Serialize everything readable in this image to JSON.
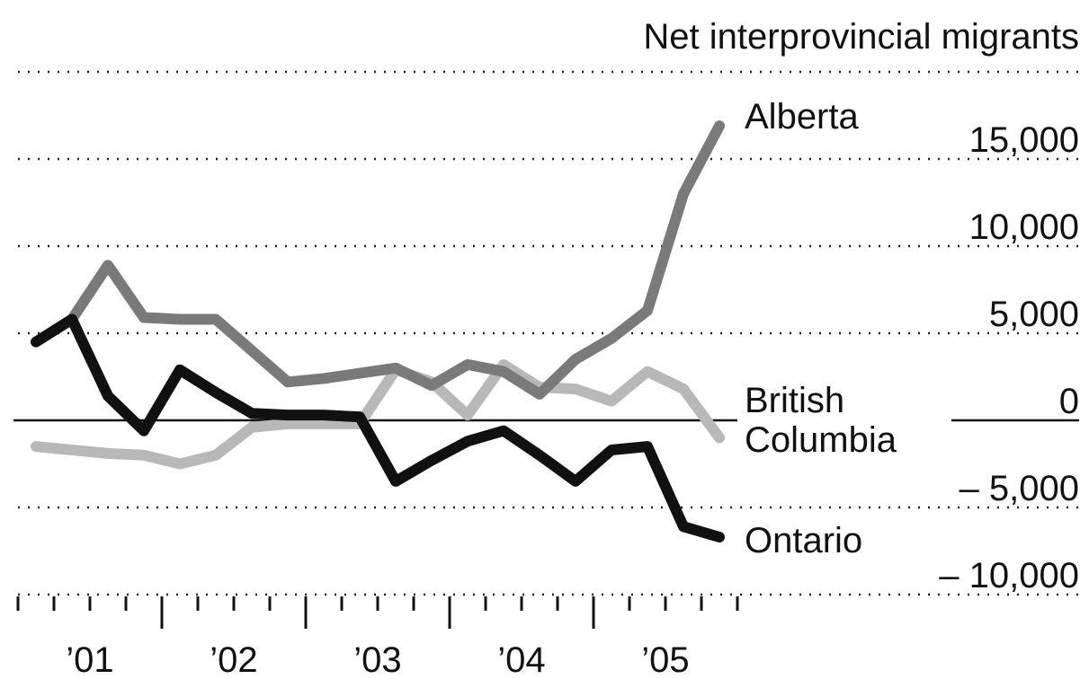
{
  "chart_data": {
    "type": "line",
    "title": "Net interprovincial migrants",
    "x": [
      2001.125,
      2001.375,
      2001.625,
      2001.875,
      2002.125,
      2002.375,
      2002.625,
      2002.875,
      2003.125,
      2003.375,
      2003.625,
      2003.875,
      2004.125,
      2004.375,
      2004.625,
      2004.875,
      2005.125,
      2005.375,
      2005.625,
      2005.875
    ],
    "series": [
      {
        "name": "British Columbia",
        "color": "#b8b8b8",
        "values": [
          -1500,
          -1700,
          -1900,
          -2000,
          -2500,
          -2000,
          -400,
          -200,
          -200,
          -200,
          2900,
          2200,
          300,
          3200,
          1900,
          1800,
          1100,
          2800,
          1800,
          -1000
        ]
      },
      {
        "name": "Alberta",
        "color": "#7a7a7a",
        "values": [
          null,
          5800,
          8900,
          5900,
          5800,
          5800,
          4000,
          2200,
          2400,
          2700,
          3000,
          2000,
          3200,
          2800,
          1500,
          3500,
          4700,
          6300,
          13000,
          16900
        ]
      },
      {
        "name": "Ontario",
        "color": "#111111",
        "values": [
          4500,
          5800,
          1400,
          -600,
          2900,
          1600,
          400,
          300,
          300,
          200,
          -3500,
          -2300,
          -1200,
          -600,
          -2000,
          -3500,
          -1700,
          -1500,
          -6100,
          -6700
        ]
      }
    ],
    "xlim": [
      2001,
      2006
    ],
    "xticks": [
      {
        "value": 2001.5,
        "label": "’01"
      },
      {
        "value": 2002.5,
        "label": "’02"
      },
      {
        "value": 2003.5,
        "label": "’03"
      },
      {
        "value": 2004.5,
        "label": "’04"
      },
      {
        "value": 2005.5,
        "label": "’05"
      }
    ],
    "ylim": [
      -10000,
      20000
    ],
    "yticks": [
      {
        "value": -10000,
        "label": "– 10,000"
      },
      {
        "value": -5000,
        "label": "– 5,000"
      },
      0,
      {
        "value": 5000,
        "label": "5,000"
      },
      {
        "value": 10000,
        "label": "10,000"
      },
      {
        "value": 15000,
        "label": "15,000"
      }
    ],
    "grid": true
  }
}
